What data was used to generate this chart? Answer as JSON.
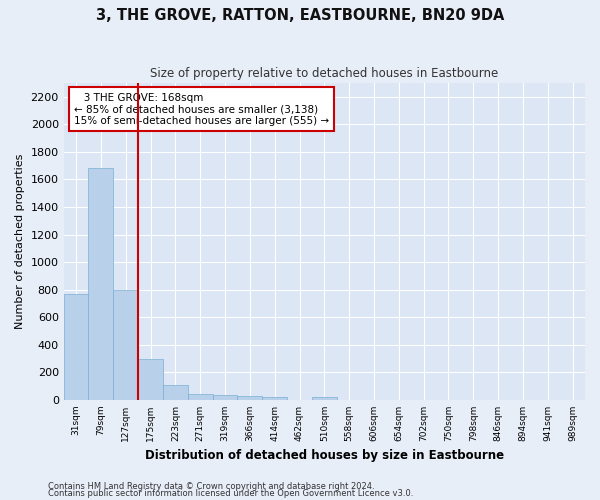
{
  "title": "3, THE GROVE, RATTON, EASTBOURNE, BN20 9DA",
  "subtitle": "Size of property relative to detached houses in Eastbourne",
  "xlabel": "Distribution of detached houses by size in Eastbourne",
  "ylabel": "Number of detached properties",
  "footnote1": "Contains HM Land Registry data © Crown copyright and database right 2024.",
  "footnote2": "Contains public sector information licensed under the Open Government Licence v3.0.",
  "annotation_line1": "   3 THE GROVE: 168sqm",
  "annotation_line2": "← 85% of detached houses are smaller (3,138)",
  "annotation_line3": "15% of semi-detached houses are larger (555) →",
  "bar_color": "#b8d0ea",
  "bar_edge_color": "#7aafd4",
  "red_line_color": "#cc0000",
  "bg_color": "#dce6f5",
  "fig_bg_color": "#e8eef8",
  "grid_color": "#ffffff",
  "categories": [
    "31sqm",
    "79sqm",
    "127sqm",
    "175sqm",
    "223sqm",
    "271sqm",
    "319sqm",
    "366sqm",
    "414sqm",
    "462sqm",
    "510sqm",
    "558sqm",
    "606sqm",
    "654sqm",
    "702sqm",
    "750sqm",
    "798sqm",
    "846sqm",
    "894sqm",
    "941sqm",
    "989sqm"
  ],
  "values": [
    770,
    1680,
    800,
    300,
    112,
    45,
    33,
    28,
    22,
    0,
    20,
    0,
    0,
    0,
    0,
    0,
    0,
    0,
    0,
    0,
    0
  ],
  "red_line_x": 2.5,
  "ylim": [
    0,
    2300
  ],
  "yticks": [
    0,
    200,
    400,
    600,
    800,
    1000,
    1200,
    1400,
    1600,
    1800,
    2000,
    2200
  ]
}
